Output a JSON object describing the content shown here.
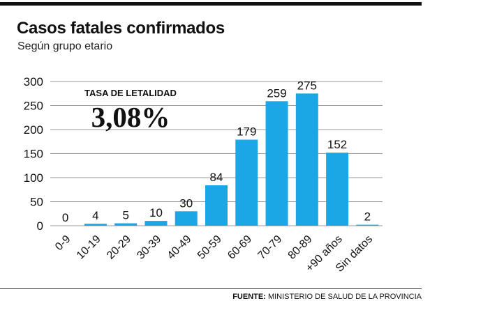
{
  "header": {
    "title": "Casos fatales confirmados",
    "subtitle": "Según grupo etario"
  },
  "stat": {
    "label": "TASA DE LETALIDAD",
    "value": "3,08%"
  },
  "footer": {
    "source_label": "FUENTE:",
    "source_text": "MINISTERIO DE SALUD DE LA PROVINCIA"
  },
  "colors": {
    "bar": "#1ba6e6",
    "grid": "#9a9a9a",
    "text": "#111111"
  },
  "chart_data": {
    "type": "bar",
    "title": "Casos fatales confirmados",
    "subtitle": "Según grupo etario",
    "xlabel": "",
    "ylabel": "",
    "categories": [
      "0-9",
      "10-19",
      "20-29",
      "30-39",
      "40-49",
      "50-59",
      "60-69",
      "70-79",
      "80-89",
      "+90 años",
      "Sin datos"
    ],
    "values": [
      0,
      4,
      5,
      10,
      30,
      84,
      179,
      259,
      275,
      152,
      2
    ],
    "data_labels": [
      "0",
      "4",
      "5",
      "10",
      "30",
      "84",
      "179",
      "259",
      "275",
      "152",
      "2"
    ],
    "ylim": [
      0,
      300
    ],
    "yticks": [
      0,
      50,
      100,
      150,
      200,
      250,
      300
    ],
    "grid": true,
    "legend": "none"
  }
}
